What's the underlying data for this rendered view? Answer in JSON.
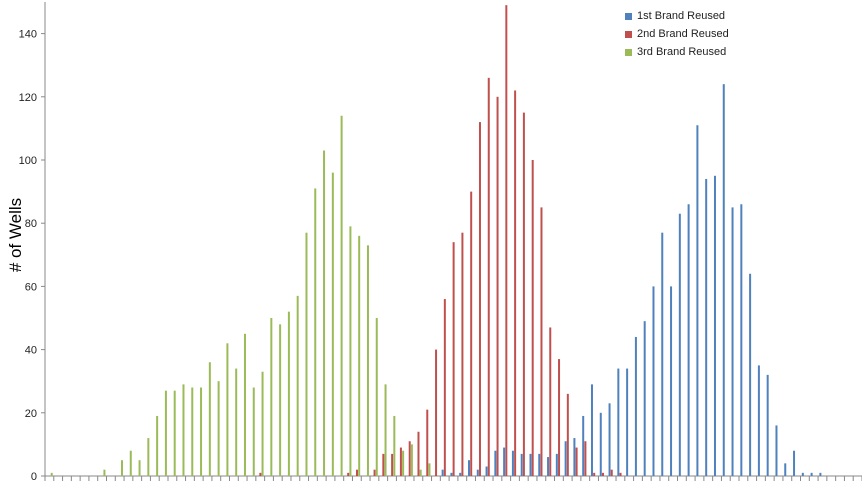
{
  "chart_data": {
    "type": "bar",
    "title": "",
    "xlabel": "",
    "ylabel": "# of Wells",
    "ylim": [
      0,
      150
    ],
    "yticks": [
      0,
      20,
      40,
      60,
      80,
      100,
      120,
      140
    ],
    "grid": false,
    "legend_position": "top-right",
    "bin_count": 93,
    "series": [
      {
        "name": "1st Brand Reused",
        "color": "#4F81BD",
        "values": [
          0,
          0,
          0,
          0,
          0,
          0,
          0,
          0,
          0,
          0,
          0,
          0,
          0,
          0,
          0,
          0,
          0,
          0,
          0,
          0,
          0,
          0,
          0,
          0,
          0,
          0,
          0,
          0,
          0,
          0,
          0,
          0,
          0,
          0,
          0,
          0,
          0,
          0,
          0,
          0,
          0,
          0,
          0,
          0,
          0,
          2,
          1,
          1,
          5,
          2,
          3,
          8,
          9,
          8,
          7,
          7,
          7,
          6,
          7,
          11,
          12,
          19,
          29,
          20,
          23,
          34,
          34,
          44,
          49,
          60,
          77,
          60,
          83,
          86,
          111,
          94,
          95,
          124,
          85,
          86,
          64,
          35,
          32,
          16,
          4,
          8,
          1,
          1,
          1,
          0,
          0,
          0,
          0
        ]
      },
      {
        "name": "2nd Brand Reused",
        "color": "#C0504D",
        "values": [
          0,
          0,
          0,
          0,
          0,
          0,
          0,
          0,
          0,
          0,
          0,
          0,
          0,
          0,
          0,
          0,
          0,
          0,
          0,
          0,
          0,
          0,
          0,
          0,
          1,
          0,
          0,
          0,
          0,
          0,
          0,
          0,
          0,
          0,
          1,
          2,
          0,
          2,
          7,
          7,
          9,
          11,
          14,
          21,
          40,
          56,
          74,
          77,
          90,
          112,
          126,
          120,
          149,
          122,
          115,
          100,
          85,
          47,
          37,
          26,
          9,
          11,
          1,
          1,
          2,
          1,
          0,
          0,
          0,
          0,
          0,
          0,
          0,
          0,
          0,
          0,
          0,
          0,
          0,
          0,
          0,
          0,
          0,
          0,
          0,
          0,
          0,
          0,
          0,
          0,
          0,
          0,
          0
        ]
      },
      {
        "name": "3rd Brand Reused",
        "color": "#9BBB59",
        "values": [
          1,
          0,
          0,
          0,
          0,
          0,
          2,
          0,
          5,
          8,
          5,
          12,
          19,
          27,
          27,
          29,
          28,
          28,
          36,
          30,
          42,
          34,
          45,
          28,
          33,
          50,
          48,
          52,
          57,
          77,
          91,
          103,
          96,
          114,
          79,
          76,
          73,
          50,
          29,
          19,
          8,
          10,
          2,
          4,
          0,
          0,
          0,
          0,
          0,
          0,
          0,
          0,
          0,
          0,
          0,
          0,
          0,
          0,
          0,
          0,
          0,
          0,
          0,
          0,
          0,
          0,
          0,
          0,
          0,
          0,
          0,
          0,
          0,
          0,
          0,
          0,
          0,
          0,
          0,
          0,
          0,
          0,
          0,
          0,
          0,
          0,
          0,
          0,
          0,
          0,
          0,
          0,
          0
        ]
      }
    ]
  }
}
